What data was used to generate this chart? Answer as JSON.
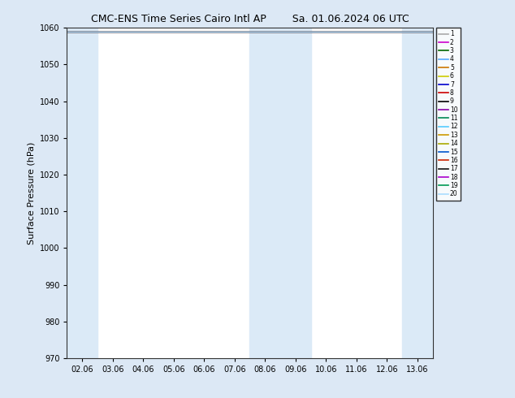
{
  "title_left": "CMC-ENS Time Series Cairo Intl AP",
  "title_right": "Sa. 01.06.2024 06 UTC",
  "ylabel": "Surface Pressure (hPa)",
  "ylim": [
    970,
    1060
  ],
  "yticks": [
    970,
    980,
    990,
    1000,
    1010,
    1020,
    1030,
    1040,
    1050,
    1060
  ],
  "xtick_labels": [
    "02.06",
    "03.06",
    "04.06",
    "05.06",
    "06.06",
    "07.06",
    "08.06",
    "09.06",
    "10.06",
    "11.06",
    "12.06",
    "13.06"
  ],
  "n_xticks": 12,
  "figure_bg": "#dce8f5",
  "plot_bg": "#ffffff",
  "shade_color": "#dbeaf7",
  "shaded_tick_indices": [
    0,
    6,
    7,
    11
  ],
  "ensemble_colors": [
    "#aaaaaa",
    "#cc00cc",
    "#006600",
    "#55aaff",
    "#cc7700",
    "#cccc00",
    "#0000cc",
    "#cc0000",
    "#000000",
    "#8800aa",
    "#008855",
    "#55ccff",
    "#cc9900",
    "#aaaa00",
    "#0055cc",
    "#cc2200",
    "#111111",
    "#aa00cc",
    "#009955",
    "#aaddff"
  ],
  "ensemble_value": 1059.0,
  "n_members": 20
}
